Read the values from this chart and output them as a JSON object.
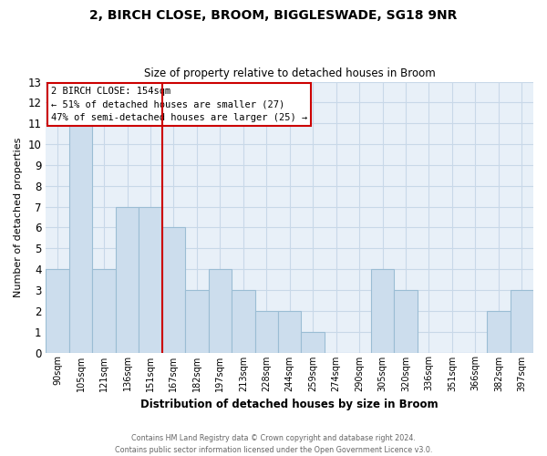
{
  "title_line1": "2, BIRCH CLOSE, BROOM, BIGGLESWADE, SG18 9NR",
  "title_line2": "Size of property relative to detached houses in Broom",
  "xlabel": "Distribution of detached houses by size in Broom",
  "ylabel": "Number of detached properties",
  "bar_labels": [
    "90sqm",
    "105sqm",
    "121sqm",
    "136sqm",
    "151sqm",
    "167sqm",
    "182sqm",
    "197sqm",
    "213sqm",
    "228sqm",
    "244sqm",
    "259sqm",
    "274sqm",
    "290sqm",
    "305sqm",
    "320sqm",
    "336sqm",
    "351sqm",
    "366sqm",
    "382sqm",
    "397sqm"
  ],
  "bar_values": [
    4,
    11,
    4,
    7,
    7,
    6,
    3,
    4,
    3,
    2,
    2,
    1,
    0,
    0,
    4,
    3,
    0,
    0,
    0,
    2,
    3
  ],
  "bar_color": "#ccdded",
  "bar_edge_color": "#9bbdd4",
  "property_line_x": 4,
  "property_line_color": "#cc0000",
  "ylim": [
    0,
    13
  ],
  "yticks": [
    0,
    1,
    2,
    3,
    4,
    5,
    6,
    7,
    8,
    9,
    10,
    11,
    12,
    13
  ],
  "annotation_title": "2 BIRCH CLOSE: 154sqm",
  "annotation_line1": "← 51% of detached houses are smaller (27)",
  "annotation_line2": "47% of semi-detached houses are larger (25) →",
  "annotation_box_color": "#ffffff",
  "annotation_box_edge": "#cc0000",
  "footer_line1": "Contains HM Land Registry data © Crown copyright and database right 2024.",
  "footer_line2": "Contains public sector information licensed under the Open Government Licence v3.0.",
  "grid_color": "#c8d8e8",
  "background_color": "#e8f0f8"
}
